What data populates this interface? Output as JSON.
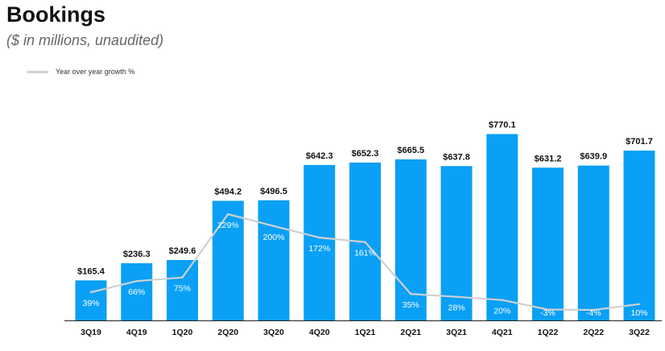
{
  "header": {
    "title": "Bookings",
    "subtitle": "($ in millions, unaudited)"
  },
  "colors": {
    "bar": "#0aa0f5",
    "growth_line": "#d0d0d0",
    "value_label": "#111111",
    "growth_label": "#ffffff",
    "axis": "#222222"
  },
  "chart_data": {
    "type": "bar",
    "title": "Bookings",
    "subtitle": "($ in millions, unaudited)",
    "xlabel": "",
    "ylabel": "",
    "categories": [
      "3Q19",
      "4Q19",
      "1Q20",
      "2Q20",
      "3Q20",
      "4Q20",
      "1Q21",
      "2Q21",
      "3Q21",
      "4Q21",
      "1Q22",
      "2Q22",
      "3Q22"
    ],
    "series": [
      {
        "name": "Bookings",
        "kind": "bar",
        "values": [
          165.4,
          236.3,
          249.6,
          494.2,
          496.5,
          642.3,
          652.3,
          665.5,
          637.8,
          770.1,
          631.2,
          639.9,
          701.7
        ],
        "labels": [
          "$165.4",
          "$236.3",
          "$249.6",
          "$494.2",
          "$496.5",
          "$642.3",
          "$652.3",
          "$665.5",
          "$637.8",
          "$770.1",
          "$631.2",
          "$639.9",
          "$701.7"
        ]
      },
      {
        "name": "Year over year growth %",
        "kind": "line",
        "values": [
          39,
          66,
          75,
          229,
          200,
          172,
          161,
          35,
          28,
          20,
          -3,
          -4,
          10
        ],
        "labels": [
          "39%",
          "66%",
          "75%",
          "229%",
          "200%",
          "172%",
          "161%",
          "35%",
          "28%",
          "20%",
          "-3%",
          "-4%",
          "10%"
        ]
      }
    ],
    "legend": {
      "entries": [
        "Year over year growth %"
      ],
      "placement": "top-left"
    },
    "y_bar_range": [
      0,
      800
    ],
    "y_growth_range": [
      -25,
      275
    ],
    "grid": false
  }
}
